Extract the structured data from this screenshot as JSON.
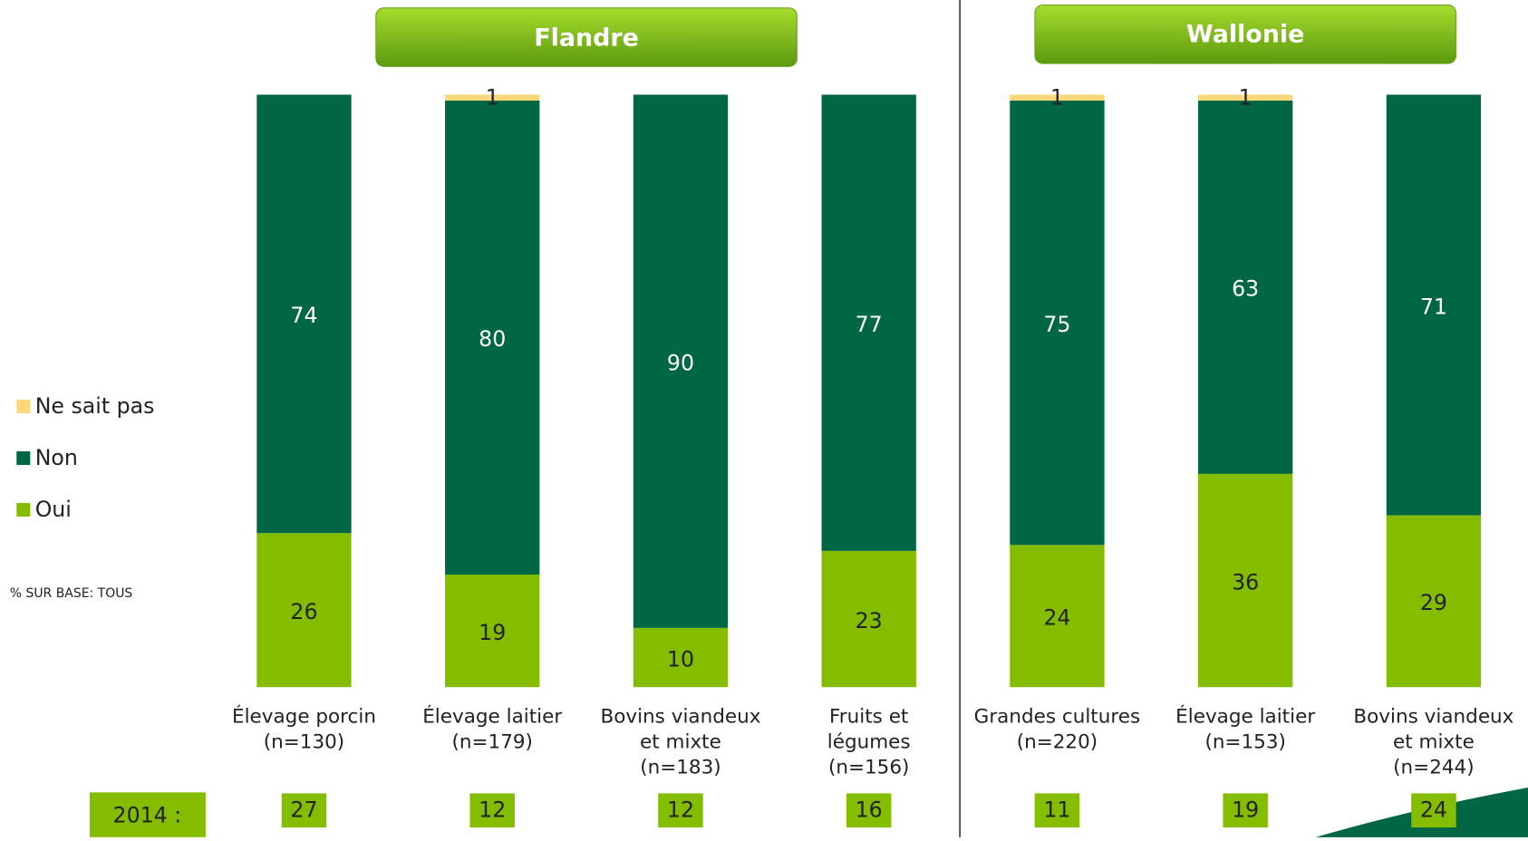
{
  "chart_data": {
    "type": "stacked_bar",
    "groups": [
      {
        "name": "Flandre",
        "from": 0,
        "to": 3
      },
      {
        "name": "Wallonie",
        "from": 4,
        "to": 6
      }
    ],
    "categories": [
      [
        "Élevage porcin",
        "(n=130)"
      ],
      [
        "Élevage laitier",
        "(n=179)"
      ],
      [
        "Bovins viandeux",
        "et mixte",
        "(n=183)"
      ],
      [
        "Fruits et",
        "légumes",
        "(n=156)"
      ],
      [
        "Grandes cultures",
        "(n=220)"
      ],
      [
        "Élevage laitier",
        "(n=153)"
      ],
      [
        "Bovins viandeux",
        "et mixte",
        "(n=244)"
      ]
    ],
    "series": [
      {
        "name": "Oui",
        "color": "#84bd00",
        "values": [
          26,
          19,
          10,
          23,
          24,
          36,
          29
        ]
      },
      {
        "name": "Non",
        "color": "#006643",
        "values": [
          74,
          80,
          90,
          77,
          75,
          63,
          71
        ]
      },
      {
        "name": "Ne sait pas",
        "color": "#fdd87a",
        "values": [
          null,
          1,
          null,
          null,
          1,
          1,
          null
        ]
      }
    ],
    "ylim": [
      0,
      100
    ],
    "note": "% SUR BASE: TOUS",
    "comparison": {
      "label": "2014 :",
      "values": [
        27,
        12,
        12,
        16,
        11,
        19,
        24
      ]
    }
  }
}
